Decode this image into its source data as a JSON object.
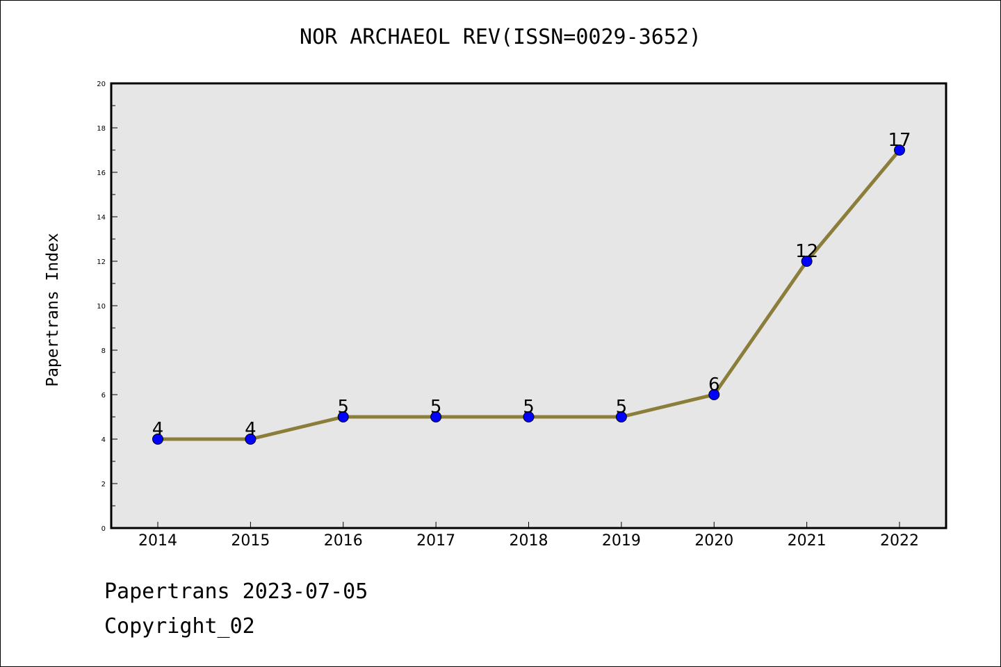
{
  "chart_data": {
    "type": "line",
    "title": "NOR ARCHAEOL REV(ISSN=0029-3652)",
    "xlabel": "",
    "ylabel": "Papertrans Index",
    "categories": [
      "2014",
      "2015",
      "2016",
      "2017",
      "2018",
      "2019",
      "2020",
      "2021",
      "2022"
    ],
    "series": [
      {
        "values": [
          4,
          4,
          5,
          5,
          5,
          5,
          6,
          12,
          17
        ]
      }
    ],
    "data_labels": [
      "4",
      "4",
      "5",
      "5",
      "5",
      "5",
      "6",
      "12",
      "17"
    ],
    "y_ticks": [
      "0",
      "2",
      "4",
      "6",
      "8",
      "10",
      "12",
      "14",
      "16",
      "18",
      "20"
    ],
    "ylim": [
      0,
      20
    ],
    "grid": false,
    "colors": {
      "line": "#8B7D3A",
      "marker": "#0000FF",
      "plot_background": "#E6E6E6"
    }
  },
  "footer": {
    "date_line": "Papertrans 2023-07-05",
    "copyright": "Copyright_02"
  }
}
